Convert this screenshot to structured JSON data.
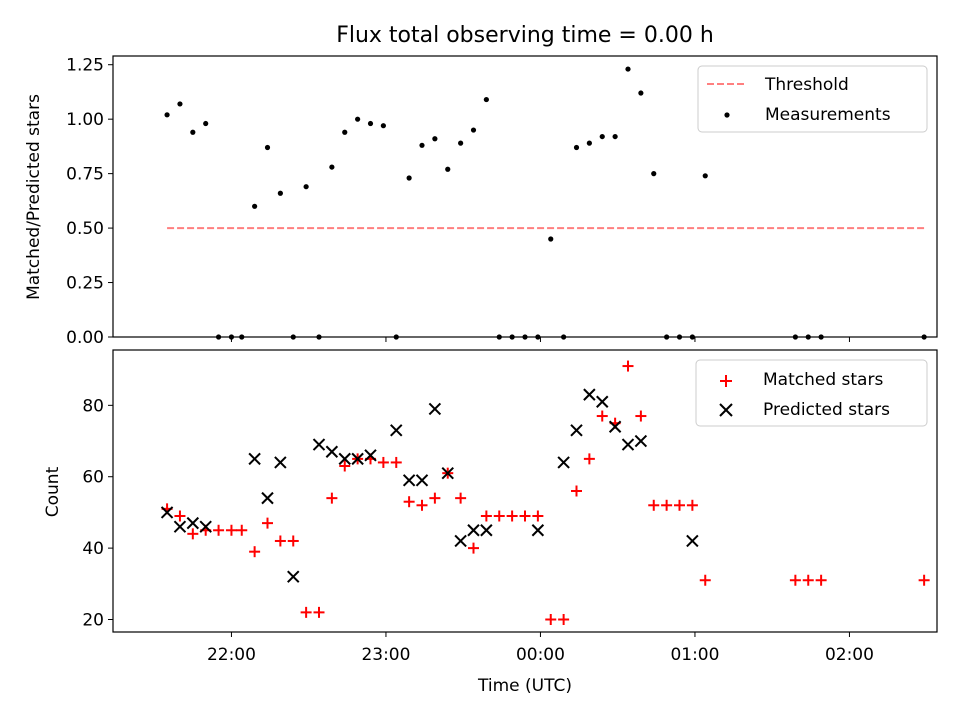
{
  "title": "Flux total observing time = 0.00 h",
  "xlabel": "Time (UTC)",
  "colors": {
    "threshold": "#ff7f7f",
    "measurement": "#000000",
    "matched": "#ff0000",
    "predicted": "#000000"
  },
  "chart_data": [
    {
      "type": "scatter",
      "title": "Flux total observing time = 0.00 h",
      "ylabel": "Matched/Predicted stars",
      "ylim": [
        0,
        1.29
      ],
      "xlim": [
        "21:14",
        "02:34"
      ],
      "yticks": [
        "0.00",
        "0.25",
        "0.50",
        "0.75",
        "1.00",
        "1.25"
      ],
      "legend": {
        "placement": "top-right",
        "entries": [
          "Threshold",
          "Measurements"
        ]
      },
      "threshold": {
        "name": "Threshold",
        "value": 0.5,
        "x": [
          "21:35",
          "02:29"
        ]
      },
      "series": [
        {
          "name": "Measurements",
          "marker": "dot",
          "x": [
            "21:35",
            "21:40",
            "21:45",
            "21:50",
            "21:55",
            "22:00",
            "22:04",
            "22:09",
            "22:14",
            "22:19",
            "22:24",
            "22:29",
            "22:34",
            "22:39",
            "22:44",
            "22:49",
            "22:54",
            "22:59",
            "23:04",
            "23:09",
            "23:14",
            "23:19",
            "23:24",
            "23:29",
            "23:34",
            "23:39",
            "23:44",
            "23:49",
            "23:54",
            "23:59",
            "00:04",
            "00:09",
            "00:14",
            "00:19",
            "00:24",
            "00:29",
            "00:34",
            "00:39",
            "00:44",
            "00:49",
            "00:54",
            "00:59",
            "01:04",
            "01:39",
            "01:44",
            "01:49",
            "02:29"
          ],
          "y": [
            1.02,
            1.07,
            0.94,
            0.98,
            0.0,
            0.0,
            0.0,
            0.6,
            0.87,
            0.66,
            0.0,
            0.69,
            0.0,
            0.78,
            0.94,
            1.0,
            0.98,
            0.97,
            0.0,
            0.73,
            0.88,
            0.91,
            0.77,
            0.89,
            0.95,
            1.09,
            0.0,
            0.0,
            0.0,
            0.0,
            0.45,
            0.0,
            0.87,
            0.89,
            0.92,
            0.92,
            1.23,
            1.12,
            0.75,
            0.0,
            0.0,
            0.0,
            0.74,
            0.0,
            0.0,
            0.0,
            0.0
          ]
        }
      ]
    },
    {
      "type": "scatter",
      "ylabel": "Count",
      "xlabel": "Time (UTC)",
      "ylim": [
        16.5,
        95.5
      ],
      "xlim": [
        "21:14",
        "02:34"
      ],
      "yticks": [
        "20",
        "40",
        "60",
        "80"
      ],
      "xticks": [
        "22:00",
        "23:00",
        "00:00",
        "01:00",
        "02:00"
      ],
      "legend": {
        "placement": "top-right",
        "entries": [
          "Matched stars",
          "Predicted stars"
        ]
      },
      "series": [
        {
          "name": "Matched stars",
          "marker": "plus",
          "x": [
            "21:35",
            "21:40",
            "21:45",
            "21:50",
            "21:55",
            "22:00",
            "22:04",
            "22:09",
            "22:14",
            "22:19",
            "22:24",
            "22:29",
            "22:34",
            "22:39",
            "22:44",
            "22:49",
            "22:54",
            "22:59",
            "23:04",
            "23:09",
            "23:14",
            "23:19",
            "23:24",
            "23:29",
            "23:34",
            "23:39",
            "23:44",
            "23:49",
            "23:54",
            "23:59",
            "00:04",
            "00:09",
            "00:14",
            "00:19",
            "00:24",
            "00:29",
            "00:34",
            "00:39",
            "00:44",
            "00:49",
            "00:54",
            "00:59",
            "01:04",
            "01:39",
            "01:44",
            "01:49",
            "02:29"
          ],
          "y": [
            51,
            49,
            44,
            45,
            45,
            45,
            45,
            39,
            47,
            42,
            42,
            22,
            22,
            54,
            63,
            65,
            65,
            64,
            64,
            53,
            52,
            54,
            61,
            54,
            40,
            49,
            49,
            49,
            49,
            49,
            20,
            20,
            56,
            65,
            77,
            75,
            91,
            77,
            52,
            52,
            52,
            52,
            31,
            31,
            31,
            31,
            31
          ]
        },
        {
          "name": "Predicted stars",
          "marker": "x",
          "x": [
            "21:35",
            "21:40",
            "21:45",
            "21:50",
            "22:09",
            "22:14",
            "22:19",
            "22:24",
            "22:34",
            "22:39",
            "22:44",
            "22:49",
            "22:54",
            "23:04",
            "23:09",
            "23:14",
            "23:19",
            "23:24",
            "23:29",
            "23:34",
            "23:39",
            "23:59",
            "00:09",
            "00:14",
            "00:19",
            "00:24",
            "00:29",
            "00:34",
            "00:39",
            "00:59"
          ],
          "y": [
            50,
            46,
            47,
            46,
            65,
            54,
            64,
            32,
            69,
            67,
            65,
            65,
            66,
            73,
            59,
            59,
            79,
            61,
            42,
            45,
            45,
            45,
            64,
            73,
            83,
            81,
            74,
            69,
            70,
            42
          ]
        }
      ]
    }
  ]
}
